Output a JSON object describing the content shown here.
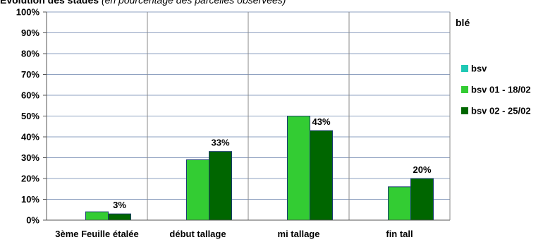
{
  "chart_data": {
    "type": "bar",
    "title_bold": "Evolution des stades",
    "title_italic": "(en pourcentage des parcelles observées)",
    "categories": [
      "3ème Feuille étalée",
      "début tallage",
      "mi tallage",
      "fin tall"
    ],
    "series": [
      {
        "name": "bsv",
        "values": [
          0,
          0,
          0,
          0
        ],
        "color": "#1fc8b4"
      },
      {
        "name": "bsv 01 - 18/02",
        "values": [
          4,
          29,
          50,
          16
        ],
        "color": "#33cc33"
      },
      {
        "name": "bsv 02 - 25/02",
        "values": [
          3,
          33,
          43,
          20
        ],
        "color": "#006600"
      }
    ],
    "data_labels": {
      "series": 2,
      "texts": [
        "3%",
        "33%",
        "43%",
        "20%"
      ]
    },
    "yticks": [
      "0%",
      "10%",
      "20%",
      "30%",
      "40%",
      "50%",
      "60%",
      "70%",
      "80%",
      "90%",
      "100%"
    ],
    "ylim": [
      0,
      100
    ],
    "legend_title": "blé",
    "legend_position": "right",
    "grid": true,
    "bar_border_color": "#1a3a70",
    "grid_color": "#8ea0c0"
  }
}
